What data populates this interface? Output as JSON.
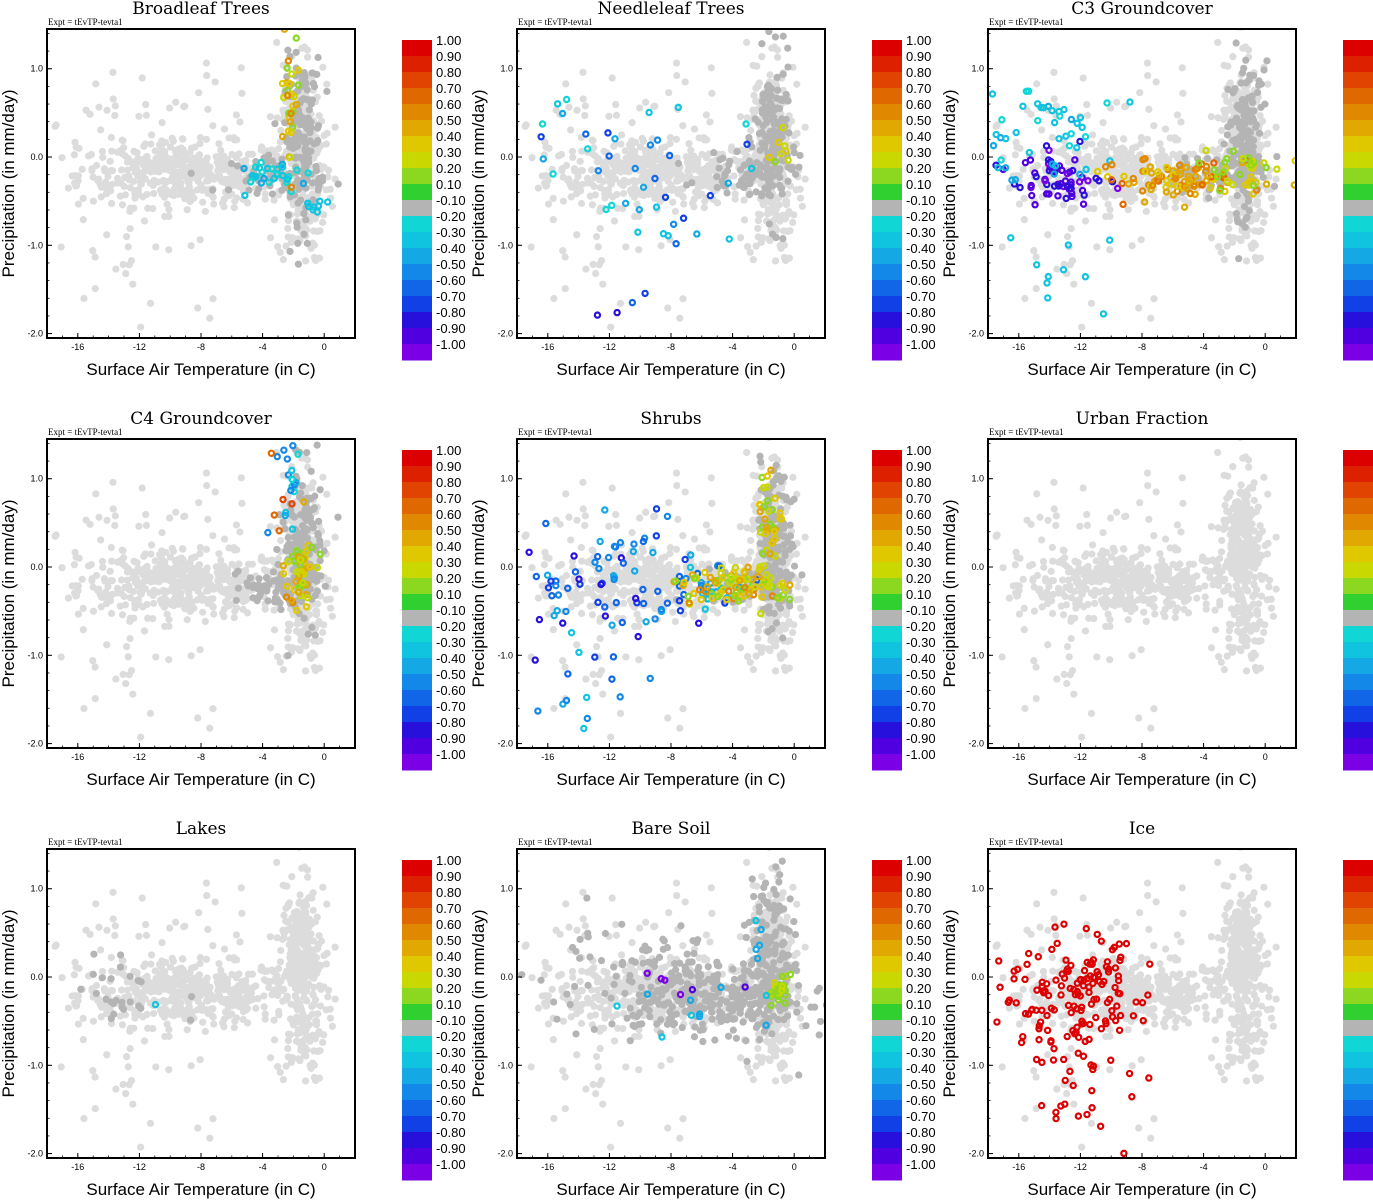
{
  "figure": {
    "expt_label": "Expt = tEvTP-tevta1",
    "colorbar_colors": [
      "#7b00e6",
      "#5000e0",
      "#2810dc",
      "#1040e6",
      "#1066e6",
      "#1488e8",
      "#14a8e4",
      "#10c4e0",
      "#10d6d6",
      "#b4b4b4",
      "#30d030",
      "#8cd820",
      "#c8d800",
      "#e0c800",
      "#e0a800",
      "#e08800",
      "#e06800",
      "#e04400",
      "#dc2000",
      "#dc0000"
    ],
    "colorbar_labels": [
      "-1.00",
      "-0.90",
      "-0.80",
      "-0.70",
      "-0.60",
      "-0.50",
      "-0.40",
      "-0.30",
      "-0.20",
      "-0.10",
      "0.10",
      "0.20",
      "0.30",
      "0.40",
      "0.50",
      "0.60",
      "0.70",
      "0.80",
      "0.90",
      "1.00"
    ],
    "background_point_color": "#dcdcdc"
  },
  "chart_data": [
    {
      "type": "scatter",
      "title": "Broadleaf Trees",
      "xlabel": "Surface Air Temperature (in C)",
      "ylabel": "Precipitation (in mm/day)",
      "xlim": [
        -18,
        2
      ],
      "ylim": [
        -2.05,
        1.45
      ],
      "xticks": [
        "-16",
        "-12",
        "-8",
        "-4",
        "0"
      ],
      "yticks": [
        "-2.0",
        "-1.0",
        "0.0",
        "1.0"
      ],
      "highlight": "vertical_warm",
      "points_summary": "cyan points near y=-0.2 for x in -6..-1, yellow/green points along x≈-2..-1 rising to y=1.3"
    },
    {
      "type": "scatter",
      "title": "Needleleaf Trees",
      "xlabel": "Surface Air Temperature (in C)",
      "ylabel": "Precipitation (in mm/day)",
      "xlim": [
        -18,
        2
      ],
      "ylim": [
        -2.05,
        1.45
      ],
      "xticks": [
        "-16",
        "-12",
        "-8",
        "-4",
        "0"
      ],
      "yticks": [
        "-2.0",
        "-1.0",
        "0.0",
        "1.0"
      ],
      "highlight": "scattered_blue",
      "points_summary": "scattered cyan/blue points, some down to y=-2.0, few green near x=0"
    },
    {
      "type": "scatter",
      "title": "C3 Groundcover",
      "xlabel": "Surface Air Temperature (in C)",
      "ylabel": "Precipitation (in mm/day)",
      "xlim": [
        -18,
        2
      ],
      "ylim": [
        -2.05,
        1.45
      ],
      "xticks": [
        "-16",
        "-12",
        "-8",
        "-4",
        "0"
      ],
      "yticks": [
        "-2.0",
        "-1.0",
        "0.0",
        "1.0"
      ],
      "highlight": "c3_band",
      "points_summary": "purple/cyan cold cluster near x=-14, orange/yellow band y≈-0.3 for x -10..-1"
    },
    {
      "type": "scatter",
      "title": "C4 Groundcover",
      "xlabel": "Surface Air Temperature (in C)",
      "ylabel": "Precipitation (in mm/day)",
      "xlim": [
        -18,
        2
      ],
      "ylim": [
        -2.05,
        1.45
      ],
      "xticks": [
        "-16",
        "-12",
        "-8",
        "-4",
        "0"
      ],
      "yticks": [
        "-2.0",
        "-1.0",
        "0.0",
        "1.0"
      ],
      "highlight": "c4_vertical",
      "points_summary": "yellow/green vertical cluster x≈-2..-1, cyan/blue top near y=1.2"
    },
    {
      "type": "scatter",
      "title": "Shrubs",
      "xlabel": "Surface Air Temperature (in C)",
      "ylabel": "Precipitation (in mm/day)",
      "xlim": [
        -18,
        2
      ],
      "ylim": [
        -2.05,
        1.45
      ],
      "xticks": [
        "-16",
        "-12",
        "-8",
        "-4",
        "0"
      ],
      "yticks": [
        "-2.0",
        "-1.0",
        "0.0",
        "1.0"
      ],
      "highlight": "shrubs_mixed",
      "points_summary": "blue/purple cold cluster, yellow/green warm cluster, vertical column near x=-2"
    },
    {
      "type": "scatter",
      "title": "Urban Fraction",
      "xlabel": "Surface Air Temperature (in C)",
      "ylabel": "Precipitation (in mm/day)",
      "xlim": [
        -18,
        2
      ],
      "ylim": [
        -2.05,
        1.45
      ],
      "xticks": [
        "-16",
        "-12",
        "-8",
        "-4",
        "0"
      ],
      "yticks": [
        "-2.0",
        "-1.0",
        "0.0",
        "1.0"
      ],
      "highlight": "none",
      "points_summary": "only light gray background points"
    },
    {
      "type": "scatter",
      "title": "Lakes",
      "xlabel": "Surface Air Temperature (in C)",
      "ylabel": "Precipitation (in mm/day)",
      "xlim": [
        -18,
        2
      ],
      "ylim": [
        -2.05,
        1.45
      ],
      "xticks": [
        "-16",
        "-12",
        "-8",
        "-4",
        "0"
      ],
      "yticks": [
        "-2.0",
        "-1.0",
        "0.0",
        "1.0"
      ],
      "highlight": "lakes",
      "points_summary": "few dark gray points at x≈-16..-11, one cyan point near (-11,-0.3)"
    },
    {
      "type": "scatter",
      "title": "Bare Soil",
      "xlabel": "Surface Air Temperature (in C)",
      "ylabel": "Precipitation (in mm/day)",
      "xlim": [
        -18,
        2
      ],
      "ylim": [
        -2.05,
        1.45
      ],
      "xticks": [
        "-16",
        "-12",
        "-8",
        "-4",
        "0"
      ],
      "yticks": [
        "-2.0",
        "-1.0",
        "0.0",
        "1.0"
      ],
      "highlight": "baresoil",
      "points_summary": "dense gray points, green cluster near x=-1, scattered cyan/purple"
    },
    {
      "type": "scatter",
      "title": "Ice",
      "xlabel": "Surface Air Temperature (in C)",
      "ylabel": "Precipitation (in mm/day)",
      "xlim": [
        -18,
        2
      ],
      "ylim": [
        -2.05,
        1.45
      ],
      "xticks": [
        "-16",
        "-12",
        "-8",
        "-4",
        "0"
      ],
      "yticks": [
        "-2.0",
        "-1.0",
        "0.0",
        "1.0"
      ],
      "highlight": "ice",
      "points_summary": "red points cluster x -18..-6, y -1.9..0.9"
    }
  ]
}
